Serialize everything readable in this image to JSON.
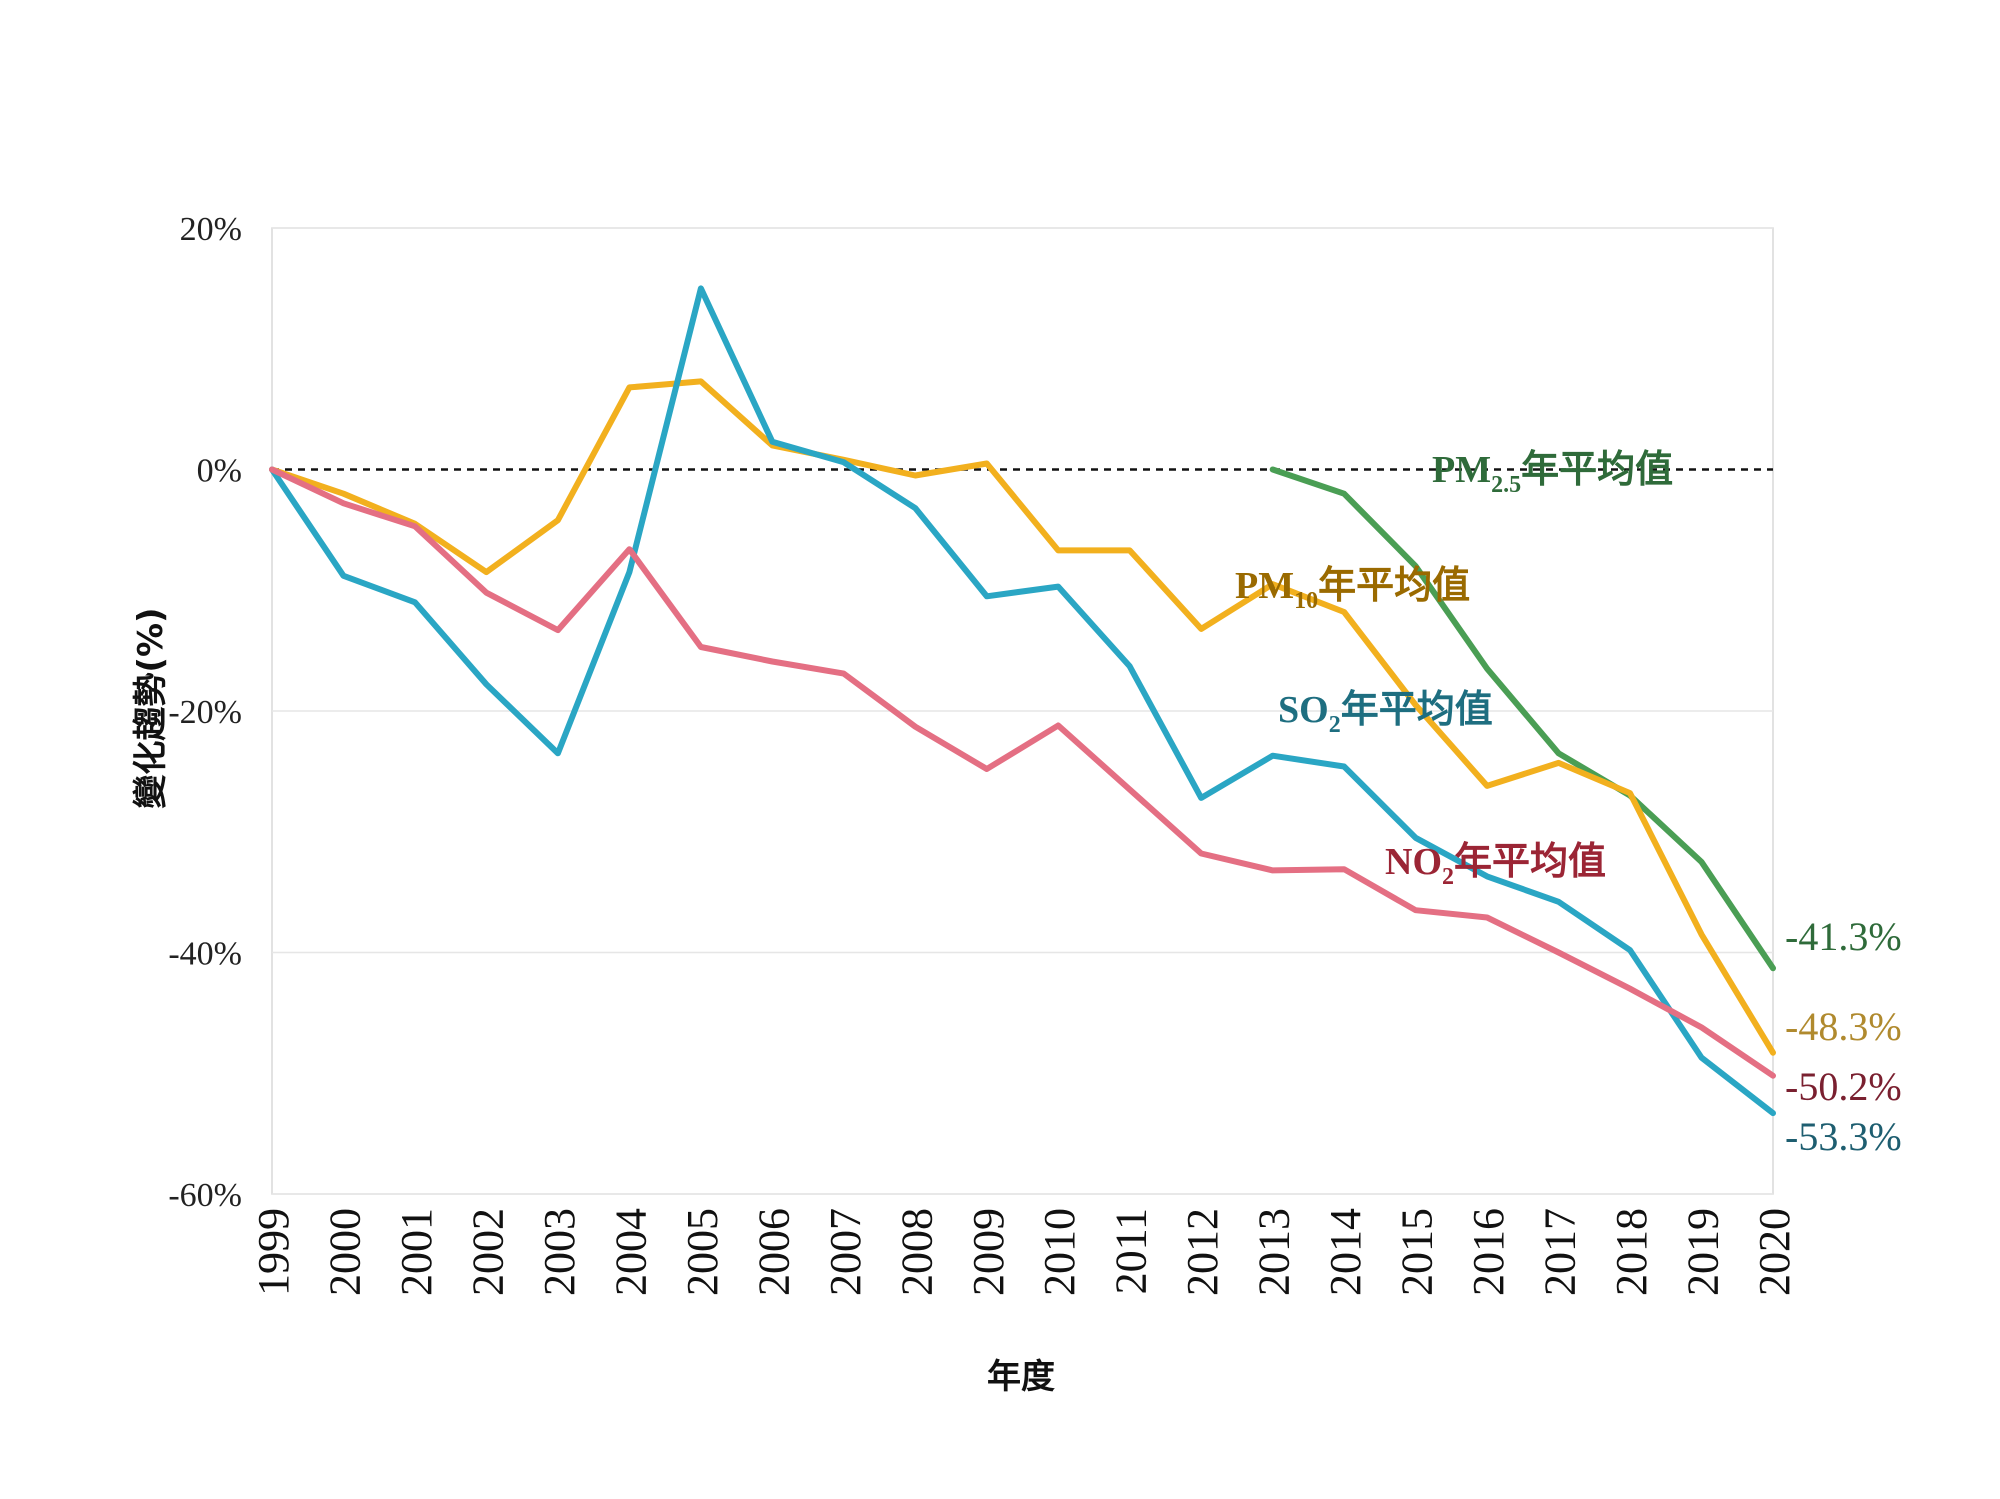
{
  "chart_data": {
    "type": "line",
    "title": "",
    "xlabel": "年度",
    "ylabel": "變化趨勢(%)",
    "ylim": [
      -60,
      20
    ],
    "yticks": [
      20,
      0,
      -20,
      -40,
      -60
    ],
    "ytick_labels": [
      "20%",
      "0%",
      "-20%",
      "-40%",
      "-60%"
    ],
    "baseline": 0,
    "grid": true,
    "x": [
      "1999",
      "2000",
      "2001",
      "2002",
      "2003",
      "2004",
      "2005",
      "2006",
      "2007",
      "2008",
      "2009",
      "2010",
      "2011",
      "2012",
      "2013",
      "2014",
      "2015",
      "2016",
      "2017",
      "2018",
      "2019",
      "2020"
    ],
    "series": [
      {
        "name_main": "PM",
        "name_sub": "2.5",
        "name_rest": "年平均值",
        "color": "#4a9e54",
        "label_color": "#2f6b3a",
        "values": [
          null,
          null,
          null,
          null,
          null,
          null,
          null,
          null,
          null,
          null,
          null,
          null,
          null,
          null,
          0,
          -2,
          -8,
          -16.5,
          -23.5,
          -27,
          -32.5,
          -41.3
        ],
        "end_label": "-41.3%",
        "end_label_color": "#2f6b3a"
      },
      {
        "name_main": "PM",
        "name_sub": "10",
        "name_rest": "年平均值",
        "color": "#f2b01e",
        "label_color": "#9a6a00",
        "values": [
          0,
          -2,
          -4.5,
          -8.5,
          -4.2,
          6.8,
          7.3,
          2,
          0.8,
          -0.5,
          0.5,
          -6.7,
          -6.7,
          -13.2,
          -9.5,
          -11.8,
          -19.5,
          -26.2,
          -24.3,
          -26.8,
          -38.5,
          -48.3
        ],
        "end_label": "-48.3%",
        "end_label_color": "#b08a2e"
      },
      {
        "name_main": "SO",
        "name_sub": "2",
        "name_rest": "年平均值",
        "color": "#2aa6c4",
        "label_color": "#1e6e80",
        "values": [
          0,
          -8.8,
          -11,
          -17.8,
          -23.5,
          -8.5,
          15,
          2.3,
          0.6,
          -3.2,
          -10.5,
          -9.7,
          -16.3,
          -27.2,
          -23.7,
          -24.6,
          -30.5,
          -33.7,
          -35.8,
          -39.8,
          -48.7,
          -53.3
        ],
        "end_label": "-53.3%",
        "end_label_color": "#1e5e70"
      },
      {
        "name_main": "NO",
        "name_sub": "2",
        "name_rest": "年平均值",
        "color": "#e46f83",
        "label_color": "#9b2535",
        "values": [
          0,
          -2.8,
          -4.7,
          -10.2,
          -13.3,
          -6.6,
          -14.7,
          -15.9,
          -16.9,
          -21.3,
          -24.8,
          -21.2,
          -26.5,
          -31.8,
          -33.2,
          -33.1,
          -36.5,
          -37.1,
          -40,
          -43,
          -46.2,
          -50.2
        ],
        "end_label": "-50.2%",
        "end_label_color": "#7a2030"
      }
    ]
  }
}
